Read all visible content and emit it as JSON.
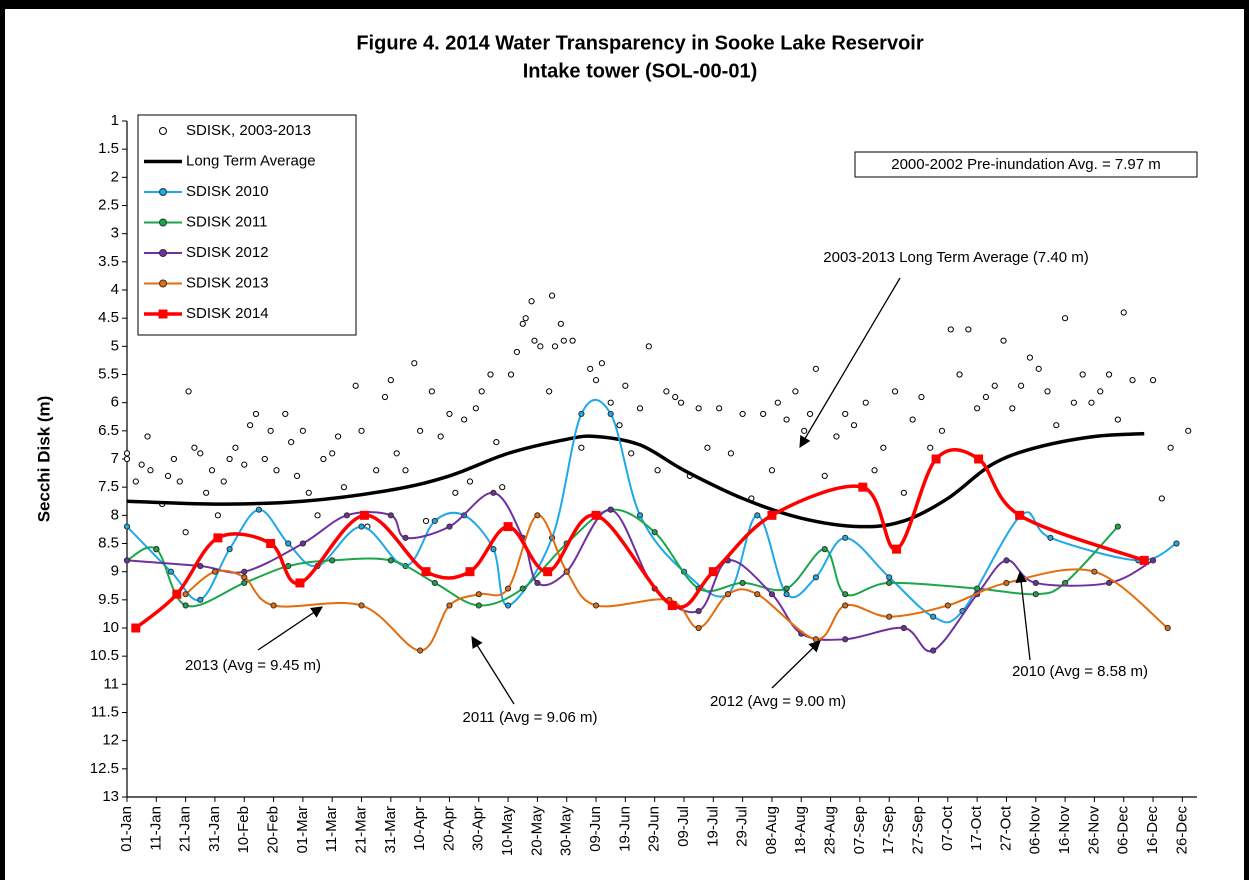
{
  "chart_data": {
    "type": "line",
    "title": "Figure 4. 2014 Water Transparency in Sooke Lake Reservoir",
    "subtitle": "Intake tower (SOL-00-01)",
    "y_label": "Secchi Disk (m)",
    "xlim": [
      0,
      365
    ],
    "ylim": [
      1,
      13
    ],
    "y_inverted": true,
    "grid": false,
    "legend": "upper left",
    "xticks": [
      {
        "value": 0,
        "label": "01-Jan"
      },
      {
        "value": 10,
        "label": "11-Jan"
      },
      {
        "value": 20,
        "label": "21-Jan"
      },
      {
        "value": 30,
        "label": "31-Jan"
      },
      {
        "value": 40,
        "label": "10-Feb"
      },
      {
        "value": 50,
        "label": "20-Feb"
      },
      {
        "value": 60,
        "label": "01-Mar"
      },
      {
        "value": 70,
        "label": "11-Mar"
      },
      {
        "value": 80,
        "label": "21-Mar"
      },
      {
        "value": 90,
        "label": "31-Mar"
      },
      {
        "value": 100,
        "label": "10-Apr"
      },
      {
        "value": 110,
        "label": "20-Apr"
      },
      {
        "value": 120,
        "label": "30-Apr"
      },
      {
        "value": 130,
        "label": "10-May"
      },
      {
        "value": 140,
        "label": "20-May"
      },
      {
        "value": 150,
        "label": "30-May"
      },
      {
        "value": 160,
        "label": "09-Jun"
      },
      {
        "value": 170,
        "label": "19-Jun"
      },
      {
        "value": 180,
        "label": "29-Jun"
      },
      {
        "value": 190,
        "label": "09-Jul"
      },
      {
        "value": 200,
        "label": "19-Jul"
      },
      {
        "value": 210,
        "label": "29-Jul"
      },
      {
        "value": 220,
        "label": "08-Aug"
      },
      {
        "value": 230,
        "label": "18-Aug"
      },
      {
        "value": 240,
        "label": "28-Aug"
      },
      {
        "value": 250,
        "label": "07-Sep"
      },
      {
        "value": 260,
        "label": "17-Sep"
      },
      {
        "value": 270,
        "label": "27-Sep"
      },
      {
        "value": 280,
        "label": "07-Oct"
      },
      {
        "value": 290,
        "label": "17-Oct"
      },
      {
        "value": 300,
        "label": "27-Oct"
      },
      {
        "value": 310,
        "label": "06-Nov"
      },
      {
        "value": 320,
        "label": "16-Nov"
      },
      {
        "value": 330,
        "label": "26-Nov"
      },
      {
        "value": 340,
        "label": "06-Dec"
      },
      {
        "value": 350,
        "label": "16-Dec"
      },
      {
        "value": 360,
        "label": "26-Dec"
      }
    ],
    "yticks": [
      1,
      1.5,
      2,
      2.5,
      3,
      3.5,
      4,
      4.5,
      5,
      5.5,
      6,
      6.5,
      7,
      7.5,
      8,
      8.5,
      9,
      9.5,
      10,
      10.5,
      11,
      11.5,
      12,
      12.5,
      13
    ],
    "series": [
      {
        "name": "SDISK, 2003-2013",
        "style": "scatter",
        "marker": "circle",
        "color": "#000000",
        "x": [
          0,
          0,
          3,
          5,
          7,
          8,
          10,
          12,
          14,
          16,
          18,
          20,
          21,
          23,
          25,
          27,
          29,
          31,
          33,
          35,
          37,
          40,
          42,
          44,
          47,
          49,
          51,
          54,
          56,
          58,
          60,
          62,
          65,
          67,
          70,
          72,
          74,
          78,
          80,
          82,
          85,
          88,
          90,
          92,
          95,
          98,
          100,
          102,
          104,
          107,
          110,
          112,
          115,
          117,
          119,
          121,
          124,
          126,
          128,
          131,
          133,
          135,
          136,
          138,
          139,
          141,
          144,
          145,
          146,
          148,
          149,
          152,
          155,
          158,
          160,
          162,
          165,
          168,
          170,
          172,
          175,
          178,
          181,
          184,
          187,
          189,
          192,
          195,
          198,
          202,
          206,
          210,
          213,
          217,
          220,
          222,
          225,
          228,
          231,
          233,
          235,
          238,
          242,
          245,
          248,
          252,
          255,
          258,
          262,
          265,
          268,
          271,
          274,
          278,
          281,
          284,
          287,
          290,
          293,
          296,
          299,
          302,
          305,
          308,
          311,
          314,
          317,
          320,
          323,
          326,
          329,
          332,
          335,
          338,
          340,
          343,
          350,
          353,
          356,
          362
        ],
        "values": [
          6.9,
          7.0,
          7.4,
          7.1,
          6.6,
          7.2,
          8.6,
          7.8,
          7.3,
          7.0,
          7.4,
          8.3,
          5.8,
          6.8,
          6.9,
          7.6,
          7.2,
          8.0,
          7.4,
          7.0,
          6.8,
          7.1,
          6.4,
          6.2,
          7.0,
          6.5,
          7.2,
          6.2,
          6.7,
          7.3,
          6.5,
          7.6,
          8.0,
          7.0,
          6.9,
          6.6,
          7.5,
          5.7,
          6.5,
          8.2,
          7.2,
          5.9,
          5.6,
          6.9,
          7.2,
          5.3,
          6.5,
          8.1,
          5.8,
          6.6,
          6.2,
          7.6,
          6.3,
          7.4,
          6.1,
          5.8,
          5.5,
          6.7,
          7.5,
          5.5,
          5.1,
          4.6,
          4.5,
          4.2,
          4.9,
          5.0,
          5.8,
          4.1,
          5.0,
          4.6,
          4.9,
          4.9,
          6.8,
          5.4,
          5.6,
          5.3,
          6.0,
          6.4,
          5.7,
          6.9,
          6.1,
          5.0,
          7.2,
          5.8,
          5.9,
          6.0,
          7.3,
          6.1,
          6.8,
          6.1,
          6.9,
          6.2,
          7.7,
          6.2,
          7.2,
          6.0,
          6.3,
          5.8,
          6.5,
          6.2,
          5.4,
          7.3,
          6.6,
          6.2,
          6.4,
          6.0,
          7.2,
          6.8,
          5.8,
          7.6,
          6.3,
          5.9,
          6.8,
          6.5,
          4.7,
          5.5,
          4.7,
          6.1,
          5.9,
          5.7,
          4.9,
          6.1,
          5.7,
          5.2,
          5.4,
          5.8,
          6.4,
          4.5,
          6.0,
          5.5,
          6.0,
          5.8,
          5.5,
          6.3,
          4.4,
          5.6,
          5.6,
          7.7,
          6.8,
          6.5
        ]
      },
      {
        "name": "Long Term Average",
        "style": "line",
        "marker": "none",
        "color": "#000000",
        "line_width": 3.5,
        "x": [
          0,
          30,
          60,
          90,
          110,
          130,
          150,
          160,
          175,
          190,
          210,
          230,
          250,
          265,
          280,
          295,
          310,
          330,
          347
        ],
        "values": [
          7.75,
          7.8,
          7.75,
          7.55,
          7.3,
          6.9,
          6.65,
          6.6,
          6.75,
          7.2,
          7.7,
          8.05,
          8.2,
          8.1,
          7.7,
          7.1,
          6.8,
          6.6,
          6.55
        ]
      },
      {
        "name": "SDISK 2010",
        "style": "line",
        "marker": "circle",
        "color": "#1ea9e8",
        "line_width": 2,
        "x": [
          0,
          15,
          25,
          35,
          45,
          55,
          65,
          80,
          95,
          105,
          115,
          125,
          130,
          145,
          155,
          165,
          175,
          190,
          205,
          215,
          225,
          235,
          245,
          260,
          275,
          285,
          305,
          315,
          345,
          358
        ],
        "values": [
          8.2,
          9.0,
          9.5,
          8.6,
          7.9,
          8.5,
          8.9,
          8.2,
          8.9,
          8.1,
          8.0,
          8.6,
          9.6,
          8.4,
          6.2,
          6.2,
          8.0,
          9.0,
          9.4,
          8.0,
          9.4,
          9.1,
          8.4,
          9.1,
          9.8,
          9.7,
          8.0,
          8.4,
          8.8,
          8.5
        ]
      },
      {
        "name": "SDISK 2011",
        "style": "line",
        "marker": "circle",
        "color": "#1aa64a",
        "line_width": 2,
        "x": [
          0,
          10,
          20,
          40,
          55,
          70,
          90,
          105,
          120,
          135,
          150,
          165,
          180,
          195,
          210,
          225,
          238,
          245,
          260,
          290,
          310,
          320,
          338
        ],
        "values": [
          8.8,
          8.6,
          9.6,
          9.2,
          8.9,
          8.8,
          8.8,
          9.2,
          9.6,
          9.3,
          8.5,
          7.9,
          8.3,
          9.3,
          9.2,
          9.3,
          8.6,
          9.4,
          9.2,
          9.3,
          9.4,
          9.2,
          8.2
        ]
      },
      {
        "name": "SDISK 2012",
        "style": "line",
        "marker": "circle",
        "color": "#7030a0",
        "line_width": 2,
        "x": [
          0,
          25,
          40,
          60,
          75,
          90,
          95,
          110,
          125,
          135,
          140,
          150,
          165,
          180,
          195,
          205,
          220,
          230,
          245,
          265,
          275,
          290,
          300,
          310,
          335,
          350
        ],
        "values": [
          8.8,
          8.9,
          9.0,
          8.5,
          8.0,
          8.0,
          8.4,
          8.2,
          7.6,
          8.4,
          9.2,
          9.0,
          7.9,
          9.3,
          9.7,
          8.8,
          9.4,
          10.1,
          10.2,
          10.0,
          10.4,
          9.4,
          8.8,
          9.2,
          9.2,
          8.8
        ]
      },
      {
        "name": "SDISK 2013",
        "style": "line",
        "marker": "circle",
        "color": "#e46c0a",
        "line_width": 2,
        "x": [
          20,
          30,
          40,
          50,
          80,
          100,
          110,
          120,
          130,
          140,
          150,
          160,
          185,
          195,
          205,
          215,
          235,
          245,
          260,
          280,
          300,
          330,
          355
        ],
        "values": [
          9.4,
          9.0,
          9.1,
          9.6,
          9.6,
          10.4,
          9.6,
          9.4,
          9.3,
          8.0,
          9.0,
          9.6,
          9.5,
          10.0,
          9.4,
          9.4,
          10.2,
          9.6,
          9.8,
          9.6,
          9.2,
          9.0,
          10.0
        ]
      },
      {
        "name": "SDISK 2014",
        "style": "line",
        "marker": "square",
        "color": "#ff0000",
        "line_width": 3.5,
        "x": [
          3,
          17,
          31,
          49,
          59,
          81,
          102,
          117,
          130,
          143.5,
          160,
          186,
          200,
          220,
          251,
          262.5,
          276,
          290.5,
          304.5,
          347
        ],
        "values": [
          10,
          9.4,
          8.4,
          8.5,
          9.2,
          8,
          9,
          9,
          8.2,
          9,
          8,
          9.6,
          9,
          8,
          7.5,
          8.6,
          7,
          7,
          8,
          8.8
        ]
      }
    ],
    "annotations": [
      "2003-2013 Long Term Average (7.40 m)",
      "2013 (Avg = 9.45 m)",
      "2011 (Avg = 9.06 m)",
      "2012 (Avg = 9.00 m)",
      "2010 (Avg = 8.58 m)",
      "2000-2002 Pre-inundation Avg. = 7.97 m"
    ]
  }
}
